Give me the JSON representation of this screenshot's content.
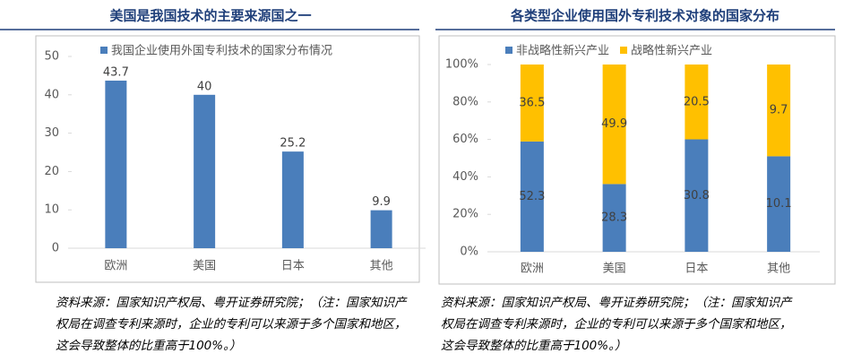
{
  "chart_data": [
    {
      "type": "bar",
      "title": "美国是我国技术的主要来源国之一",
      "categories": [
        "欧洲",
        "美国",
        "日本",
        "其他"
      ],
      "series": [
        {
          "name": "我国企业使用外国专利技术的国家分布情况",
          "color": "#4a7ebb",
          "values": [
            43.7,
            40,
            25.2,
            9.9
          ]
        }
      ],
      "ylim": [
        0,
        50
      ],
      "yticks": [
        0,
        10,
        20,
        30,
        40,
        50
      ],
      "grid": false,
      "legend": "top",
      "notes": [
        "资料来源：国家知识产权局、粤开证券研究院；（注：国家知识产",
        "权局在调查专利来源时，企业的专利可以来源于多个国家和地区，",
        "这会导致整体的比重高于100%。）"
      ]
    },
    {
      "type": "stacked_percent",
      "title": "各类型企业使用国外专利技术对象的国家分布",
      "categories": [
        "欧洲",
        "美国",
        "日本",
        "其他"
      ],
      "series": [
        {
          "name": "非战略性新兴产业",
          "color": "#4a7ebb",
          "values": [
            52.3,
            28.3,
            30.8,
            10.1
          ]
        },
        {
          "name": "战略性新兴产业",
          "color": "#ffc000",
          "values": [
            36.5,
            49.9,
            20.5,
            9.7
          ]
        }
      ],
      "ylim": [
        0,
        100
      ],
      "yticks": [
        {
          "value": 0,
          "label": "0%"
        },
        {
          "value": 20,
          "label": "20%"
        },
        {
          "value": 40,
          "label": "40%"
        },
        {
          "value": 60,
          "label": "60%"
        },
        {
          "value": 80,
          "label": "80%"
        },
        {
          "value": 100,
          "label": "100%"
        }
      ],
      "grid": false,
      "legend": "top",
      "notes": [
        "资料来源：国家知识产权局、粤开证券研究院；（注：国家知识产",
        "权局在调查专利来源时，企业的专利可以来源于多个国家和地区，",
        "这会导致整体的比重高于100%。）"
      ]
    }
  ]
}
